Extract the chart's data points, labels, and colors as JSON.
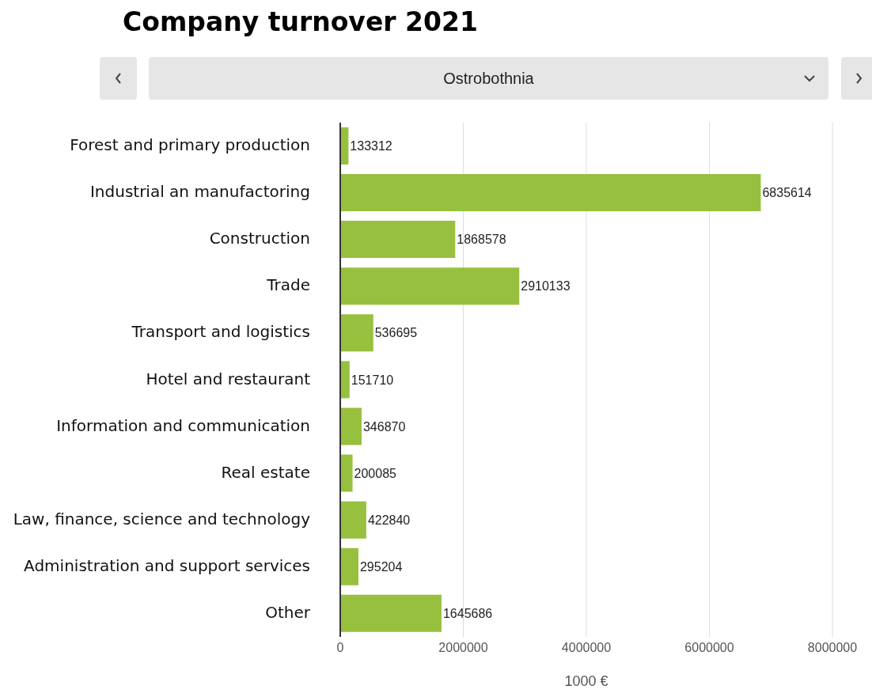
{
  "chart_data": {
    "type": "bar",
    "orientation": "horizontal",
    "title": "Company turnover 2021",
    "subtitle": "Ostrobothnia",
    "xlabel": "1000 €",
    "categories": [
      "Forest and primary production",
      "Industrial an manufactoring",
      "Construction",
      "Trade",
      "Transport and logistics",
      "Hotel and restaurant",
      "Information and communication",
      "Real estate",
      "Law, finance, science and technology",
      "Administration and support services",
      "Other"
    ],
    "values": [
      133312,
      6835614,
      1868578,
      2910133,
      536695,
      151710,
      346870,
      200085,
      422840,
      295204,
      1645686
    ],
    "color": "#97c03f",
    "xlim": [
      0,
      8000000
    ],
    "xticks": [
      0,
      2000000,
      4000000,
      6000000,
      8000000
    ],
    "grid": "x",
    "data_labels": true
  }
}
